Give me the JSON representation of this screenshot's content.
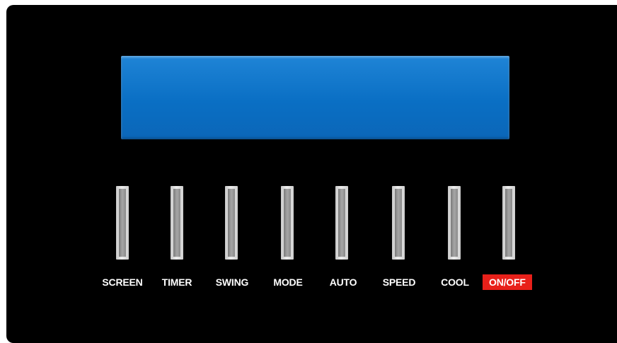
{
  "controls": {
    "buttons": [
      {
        "label": "SCREEN"
      },
      {
        "label": "TIMER"
      },
      {
        "label": "SWING"
      },
      {
        "label": "MODE"
      },
      {
        "label": "AUTO"
      },
      {
        "label": "SPEED"
      },
      {
        "label": "COOL"
      },
      {
        "label": "ON/OFF"
      }
    ]
  },
  "colors": {
    "panel": "#000000",
    "lcd": "#0a6fc4",
    "onoff_highlight": "#e8201a",
    "label_text": "#ffffff"
  }
}
